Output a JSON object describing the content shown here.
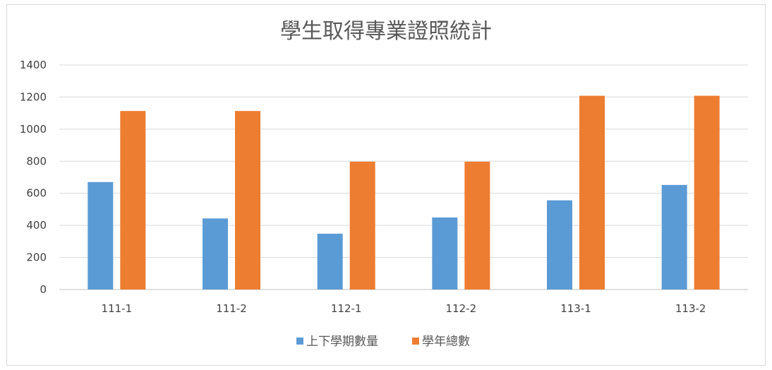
{
  "chart_data": {
    "type": "bar",
    "title": "學生取得專業證照統計",
    "categories": [
      "111-1",
      "111-2",
      "112-1",
      "112-2",
      "113-1",
      "113-2"
    ],
    "series": [
      {
        "name": "上下學期數量",
        "color": "#5b9bd5",
        "values": [
          670,
          443,
          348,
          449,
          556,
          652
        ]
      },
      {
        "name": "學年總數",
        "color": "#ed7d31",
        "values": [
          1113,
          1113,
          797,
          797,
          1208,
          1208
        ]
      }
    ],
    "ylim": [
      0,
      1400
    ],
    "yticks": [
      0,
      200,
      400,
      600,
      800,
      1000,
      1200,
      1400
    ],
    "grid": true,
    "legend": "bottom"
  }
}
